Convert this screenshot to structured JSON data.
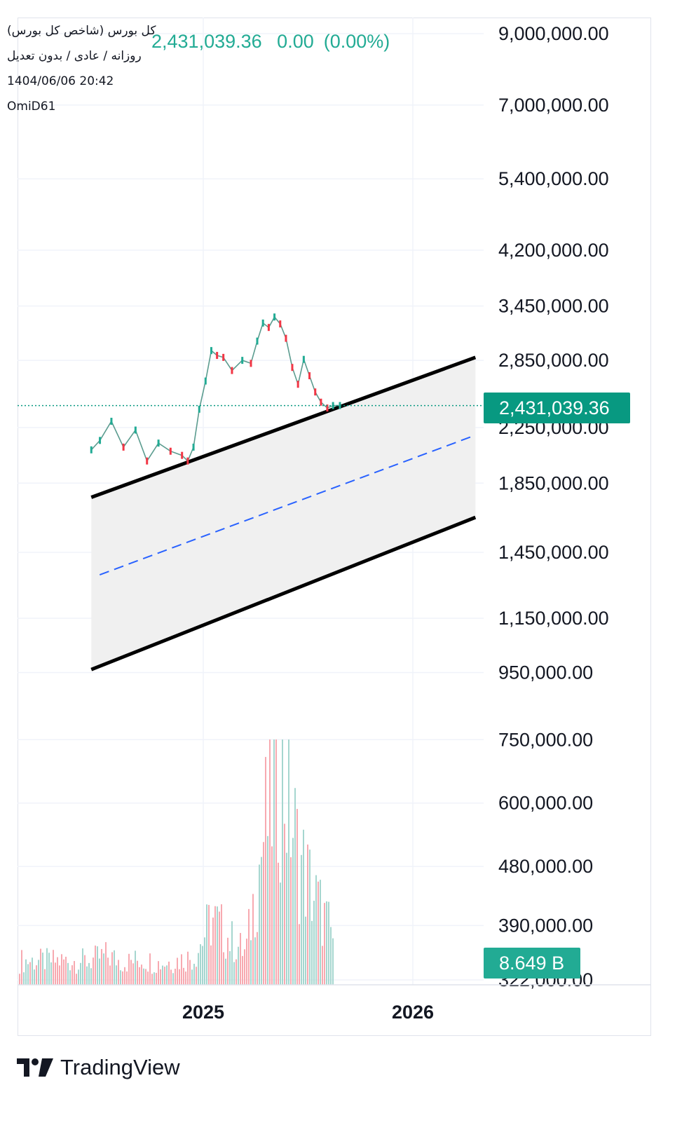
{
  "legend": {
    "symbol": "کل بورس (شاخص کل بورس)",
    "settings": "روزانه / عادی / بدون تعدیل",
    "timestamp": "1404/06/06 20:42",
    "author": "OmiD61",
    "last": "2,431,039.36",
    "change": "0.00",
    "change_pct": "(0.00%)"
  },
  "colors": {
    "up": "#22ab94",
    "down": "#f23645",
    "channel_line": "#000000",
    "channel_fill": "#f0f0f0",
    "median_line": "#2962ff",
    "price_line": "#089981"
  },
  "brand": {
    "name": "TradingView",
    "icon": "tradingview-logo-icon"
  },
  "chart_data": {
    "type": "line",
    "yscale": "log",
    "y_ticks": [
      "9,000,000.00",
      "7,000,000.00",
      "5,400,000.00",
      "4,200,000.00",
      "3,450,000.00",
      "2,850,000.00",
      "2,250,000.00",
      "1,850,000.00",
      "1,450,000.00",
      "1,150,000.00",
      "950,000.00",
      "750,000.00",
      "600,000.00",
      "480,000.00",
      "390,000.00",
      "322,000.00"
    ],
    "x_ticks": [
      "2025",
      "2026"
    ],
    "last_price": 2431039.36,
    "last_price_label": "2,431,039.36",
    "volume_label": "8.649 B",
    "series": [
      {
        "x": [
          "2024-06-20",
          "2024-07-05",
          "2024-07-25",
          "2024-08-15",
          "2024-09-05",
          "2024-09-25",
          "2024-10-15",
          "2024-11-05",
          "2024-11-25",
          "2024-12-05",
          "2024-12-15",
          "2024-12-25",
          "2025-01-05",
          "2025-01-15",
          "2025-01-25",
          "2025-02-05",
          "2025-02-20",
          "2025-03-10",
          "2025-03-25",
          "2025-04-05",
          "2025-04-15",
          "2025-04-25",
          "2025-05-05",
          "2025-05-15",
          "2025-05-25",
          "2025-06-05",
          "2025-06-15",
          "2025-06-25",
          "2025-07-05",
          "2025-07-15",
          "2025-07-25",
          "2025-08-05",
          "2025-08-15",
          "2025-08-27"
        ],
        "values": [
          2080000,
          2150000,
          2300000,
          2100000,
          2230000,
          2000000,
          2130000,
          2070000,
          2040000,
          2000000,
          2100000,
          2400000,
          2650000,
          2950000,
          2900000,
          2880000,
          2750000,
          2850000,
          2820000,
          3050000,
          3250000,
          3200000,
          3320000,
          3240000,
          3080000,
          2780000,
          2620000,
          2860000,
          2700000,
          2550000,
          2460000,
          2410000,
          2431000,
          2431039.36
        ]
      }
    ],
    "volume": {
      "x": [
        "2024-06",
        "2024-07",
        "2024-08",
        "2024-09",
        "2024-10",
        "2024-11",
        "2024-12",
        "2025-01",
        "2025-02",
        "2025-03",
        "2025-04",
        "2025-05",
        "2025-06",
        "2025-07",
        "2025-08"
      ],
      "values": [
        4.5,
        5.5,
        4.2,
        4.8,
        4.0,
        4.6,
        5.2,
        12.5,
        8.5,
        6.0,
        28.0,
        42.0,
        24.0,
        16.0,
        8.6
      ],
      "unit": "B"
    },
    "channel": {
      "upper": [
        [
          "2024-06-20",
          1760000
        ],
        [
          "2026-04-20",
          2880000
        ]
      ],
      "median": [
        [
          "2024-06-20",
          1330000
        ],
        [
          "2026-04-20",
          2190000
        ]
      ],
      "lower": [
        [
          "2024-06-20",
          960000
        ],
        [
          "2026-04-20",
          1640000
        ]
      ]
    },
    "grid": true,
    "legend_position": "top-left"
  }
}
